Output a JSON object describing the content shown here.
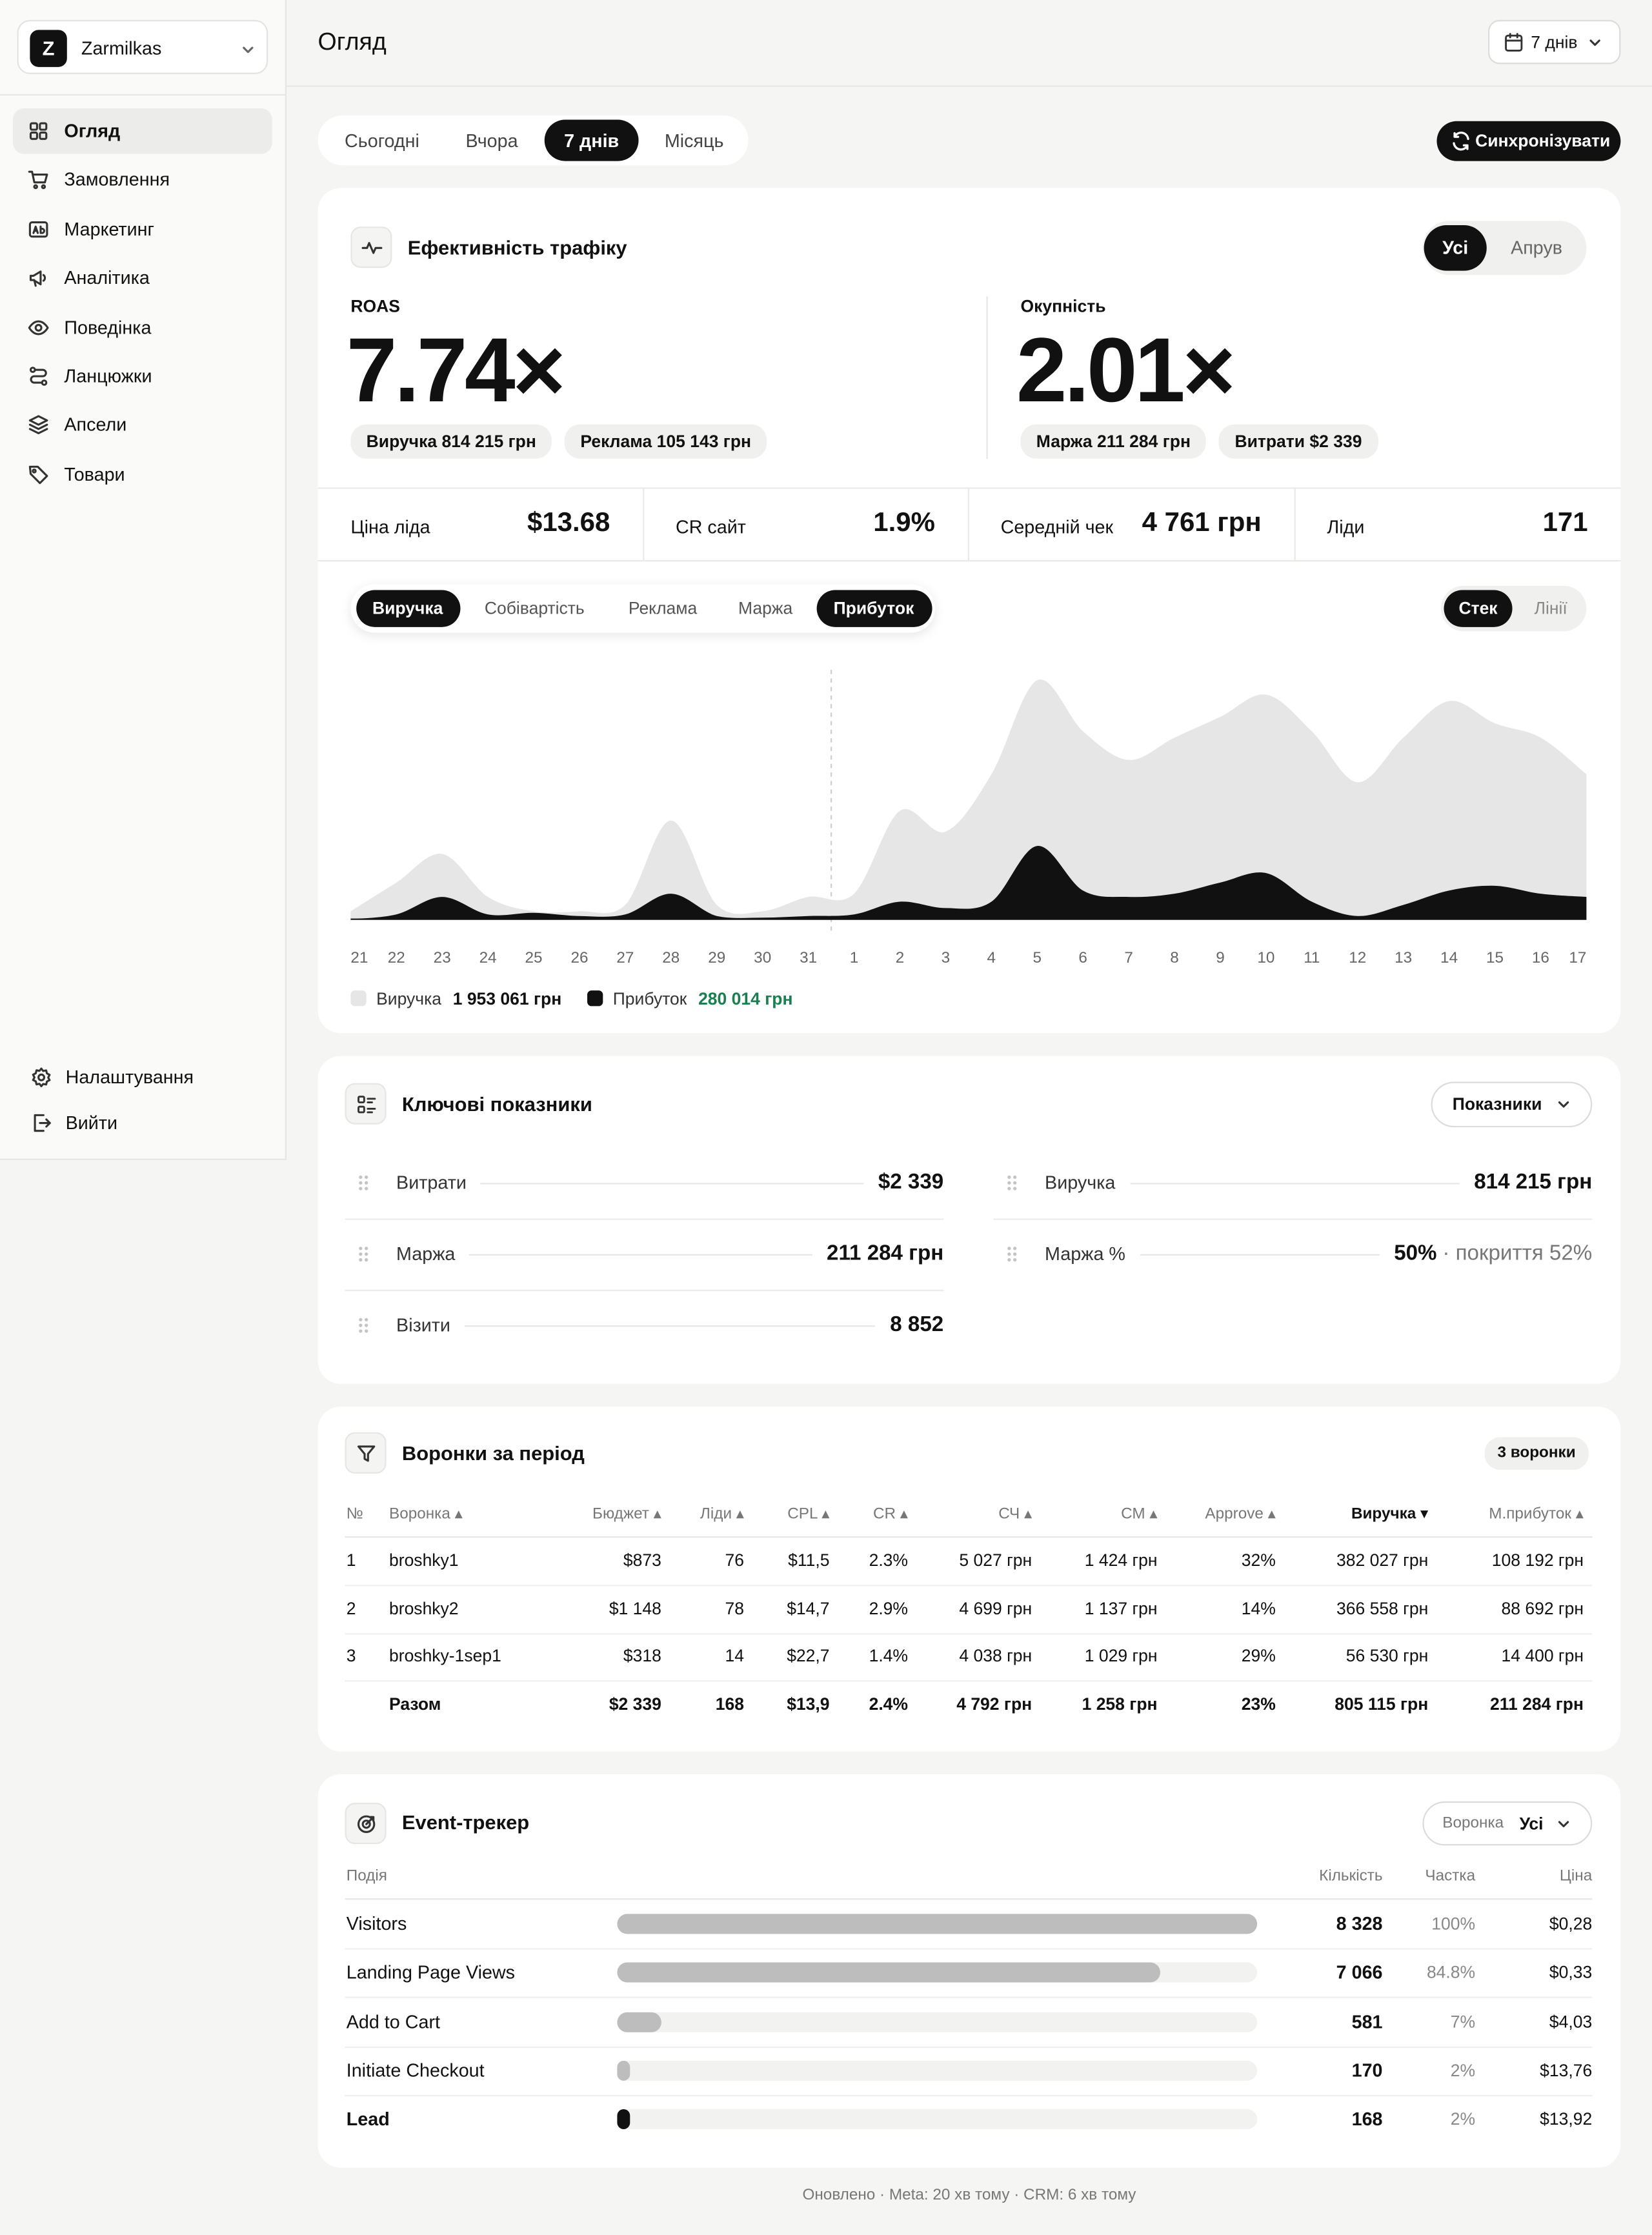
{
  "sidebar": {
    "workspace_initial": "Z",
    "workspace": "Zarmilkas",
    "nav": [
      "Огляд",
      "Замовлення",
      "Маркетинг",
      "Аналітика",
      "Поведінка",
      "Ланцюжки",
      "Апсели",
      "Товари"
    ],
    "active_nav": 0,
    "bottom": [
      "Налаштування",
      "Вийти"
    ]
  },
  "header": {
    "title": "Огляд",
    "range": "7 днів"
  },
  "period_tabs": [
    "Сьогодні",
    "Вчора",
    "7 днів",
    "Місяць"
  ],
  "active_period": 2,
  "sync": "Синхронізувати",
  "traffic": {
    "title": "Ефективність трафіку",
    "toggle": [
      "Усі",
      "Апрув"
    ],
    "active_toggle": 0,
    "kpis": [
      {
        "label": "ROAS",
        "value": "7.74×",
        "pills": [
          "Виручка 814 215 грн",
          "Реклама 105 143 грн"
        ]
      },
      {
        "label": "Окупність",
        "value": "2.01×",
        "pills": [
          "Маржа 211 284 грн",
          "Витрати $2 339"
        ]
      }
    ],
    "metrics": [
      {
        "label": "Ціна ліда",
        "value": "$13.68"
      },
      {
        "label": "CR сайт",
        "value": "1.9%"
      },
      {
        "label": "Середній чек",
        "value": "4 761 грн"
      },
      {
        "label": "Ліди",
        "value": "171"
      }
    ],
    "metric_tabs": [
      "Виручка",
      "Собівартість",
      "Реклама",
      "Маржа",
      "Прибуток"
    ],
    "active_metric_tabs": [
      0,
      4
    ],
    "mode_toggle": [
      "Стек",
      "Лінії"
    ],
    "active_mode": 0
  },
  "chart_data": {
    "type": "area",
    "categories": [
      "21",
      "22",
      "23",
      "24",
      "25",
      "26",
      "27",
      "28",
      "29",
      "30",
      "31",
      "1",
      "2",
      "3",
      "4",
      "5",
      "6",
      "7",
      "8",
      "9",
      "10",
      "11",
      "12",
      "13",
      "14",
      "15",
      "16",
      "17"
    ],
    "series": [
      {
        "name": "Виручка",
        "color": "#e6e6e6",
        "total": "1 953 061 грн",
        "total_color": "#111111",
        "values": [
          5000,
          23000,
          41000,
          14000,
          5000,
          5000,
          9000,
          62000,
          9000,
          5000,
          14000,
          16000,
          68000,
          55000,
          91000,
          150000,
          118000,
          100000,
          114000,
          127000,
          141000,
          118000,
          86000,
          114000,
          137000,
          123000,
          114000,
          91000
        ]
      },
      {
        "name": "Прибуток",
        "color": "#111111",
        "total": "280 014 грн",
        "total_color": "#1a7f4f",
        "values": [
          0,
          3000,
          14000,
          3000,
          4000,
          2000,
          3000,
          16000,
          2000,
          1000,
          2000,
          3000,
          11000,
          7000,
          11000,
          46000,
          18000,
          14000,
          16000,
          23000,
          29000,
          11000,
          2000,
          9000,
          18000,
          21000,
          16000,
          14000
        ]
      }
    ],
    "ylim": [
      0,
      170000
    ],
    "month_break_after": 10
  },
  "key_metrics": {
    "title": "Ключові показники",
    "button": "Показники",
    "left": [
      {
        "label": "Витрати",
        "value": "$2 339"
      },
      {
        "label": "Маржа",
        "value": "211 284 грн"
      },
      {
        "label": "Візити",
        "value": "8 852"
      }
    ],
    "right": [
      {
        "label": "Виручка",
        "value": "814 215 грн"
      },
      {
        "label": "Маржа %",
        "value": "50%",
        "note": "· покриття 52%"
      }
    ]
  },
  "funnels": {
    "title": "Воронки за період",
    "badge": "3 воронки",
    "columns": [
      "№",
      "Воронка ▴",
      "Бюджет ▴",
      "Ліди ▴",
      "CPL ▴",
      "CR ▴",
      "СЧ ▴",
      "СМ ▴",
      "Approve ▴",
      "Виручка ▾",
      "М.прибуток ▴"
    ],
    "sorted_column": 9,
    "rows": [
      [
        "1",
        "broshky1",
        "$873",
        "76",
        "$11,5",
        "2.3%",
        "5 027 грн",
        "1 424 грн",
        "32%",
        "382 027 грн",
        "108 192 грн"
      ],
      [
        "2",
        "broshky2",
        "$1 148",
        "78",
        "$14,7",
        "2.9%",
        "4 699 грн",
        "1 137 грн",
        "14%",
        "366 558 грн",
        "88 692 грн"
      ],
      [
        "3",
        "broshky-1sep1",
        "$318",
        "14",
        "$22,7",
        "1.4%",
        "4 038 грн",
        "1 029 грн",
        "29%",
        "56 530 грн",
        "14 400 грн"
      ]
    ],
    "total": {
      "label": "Разом",
      "cells": [
        "$2 339",
        "168",
        "$13,9",
        "2.4%",
        "4 792 грн",
        "1 258 грн",
        "23%",
        "805 115 грн",
        "211 284 грн"
      ]
    }
  },
  "events": {
    "title": "Event-трекер",
    "filter_label": "Воронка",
    "filter_value": "Усі",
    "columns": [
      "Подія",
      "Кількість",
      "Частка",
      "Ціна"
    ],
    "rows": [
      {
        "name": "Visitors",
        "count": "8 328",
        "share": 100,
        "share_label": "100%",
        "price": "$0,28"
      },
      {
        "name": "Landing Page Views",
        "count": "7 066",
        "share": 84.8,
        "share_label": "84.8%",
        "price": "$0,33"
      },
      {
        "name": "Add to Cart",
        "count": "581",
        "share": 7,
        "share_label": "7%",
        "price": "$4,03"
      },
      {
        "name": "Initiate Checkout",
        "count": "170",
        "share": 2,
        "share_label": "2%",
        "price": "$13,76"
      },
      {
        "name": "Lead",
        "count": "168",
        "share": 2,
        "share_label": "2%",
        "price": "$13,92",
        "highlight": true
      }
    ]
  },
  "footer": "Оновлено · Meta: 20 хв тому · CRM: 6 хв тому"
}
